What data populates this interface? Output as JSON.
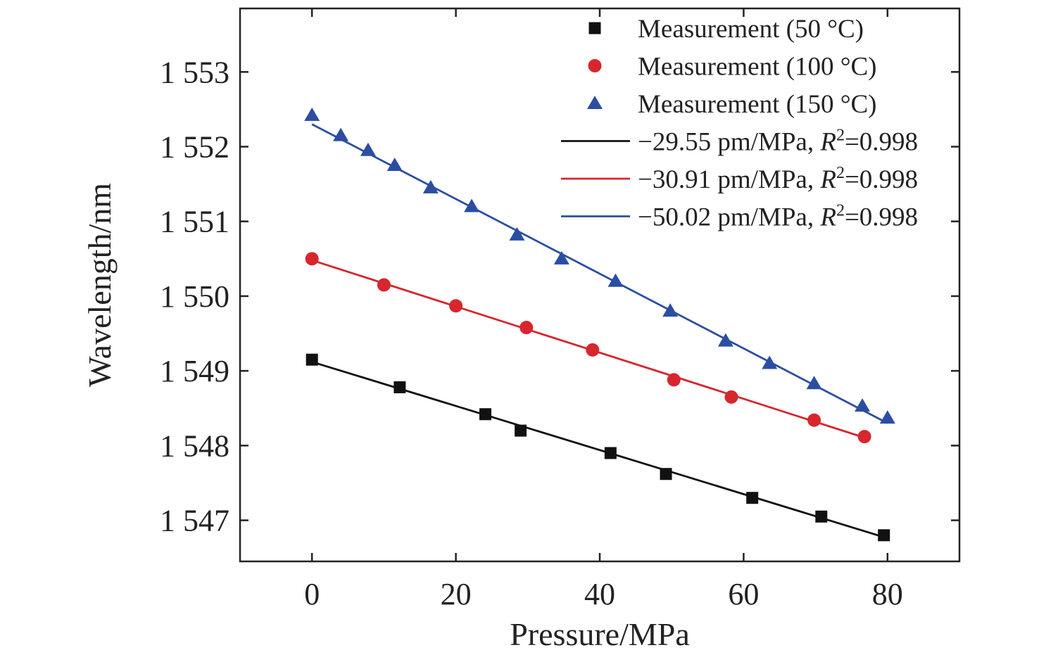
{
  "chart_data": {
    "type": "scatter",
    "xlabel": "Pressure/MPa",
    "ylabel": "Wavelength/nm",
    "xlim": [
      -10,
      90
    ],
    "ylim": [
      1546.45,
      1553.85
    ],
    "x_ticks": [
      0,
      20,
      40,
      60,
      80
    ],
    "x_tick_labels": [
      "0",
      "20",
      "40",
      "60",
      "80"
    ],
    "y_ticks": [
      1547,
      1548,
      1549,
      1550,
      1551,
      1552,
      1553
    ],
    "y_tick_labels": [
      "1 547",
      "1 548",
      "1 549",
      "1 550",
      "1 551",
      "1 552",
      "1 553"
    ],
    "grid": false,
    "legend_position": "top-right",
    "series": [
      {
        "name": "Measurement (50 °C)",
        "kind": "scatter",
        "marker": "square",
        "color": "#111111",
        "x": [
          0,
          12.2,
          24.1,
          29,
          41.5,
          49.2,
          61.2,
          70.8,
          79.5
        ],
        "y": [
          1549.15,
          1548.78,
          1548.42,
          1548.2,
          1547.9,
          1547.62,
          1547.3,
          1547.05,
          1546.8
        ]
      },
      {
        "name": "Measurement (100 °C)",
        "kind": "scatter",
        "marker": "circle",
        "color": "#d7262e",
        "x": [
          0,
          10,
          20,
          29.8,
          39,
          50.3,
          58.3,
          69.8,
          76.8
        ],
        "y": [
          1550.5,
          1550.15,
          1549.87,
          1549.58,
          1549.28,
          1548.88,
          1548.65,
          1548.34,
          1548.12
        ]
      },
      {
        "name": "Measurement (150 °C)",
        "kind": "scatter",
        "marker": "triangle",
        "color": "#2b4ea2",
        "x": [
          0,
          4,
          7.8,
          11.5,
          16.5,
          22.2,
          28.5,
          34.7,
          42.2,
          49.8,
          57.5,
          63.6,
          69.8,
          76.5,
          80
        ],
        "y": [
          1552.42,
          1552.15,
          1551.95,
          1551.75,
          1551.45,
          1551.2,
          1550.82,
          1550.5,
          1550.2,
          1549.8,
          1549.4,
          1549.1,
          1548.83,
          1548.53,
          1548.37
        ]
      },
      {
        "name": "−29.55 pm/MPa, R2=0.998",
        "label_prefix": "−29.55 pm/MPa, ",
        "label_r2": "R",
        "label_sup": "2",
        "label_value": "=0.998",
        "kind": "line",
        "color": "#111111",
        "x": [
          0,
          80
        ],
        "y": [
          1549.12,
          1546.76
        ]
      },
      {
        "name": "−30.91 pm/MPa, R2=0.998",
        "label_prefix": "−30.91 pm/MPa, ",
        "label_r2": "R",
        "label_sup": "2",
        "label_value": "=0.998",
        "kind": "line",
        "color": "#d7262e",
        "x": [
          0,
          77
        ],
        "y": [
          1550.48,
          1548.1
        ]
      },
      {
        "name": "−50.02 pm/MPa, R2=0.998",
        "label_prefix": "−50.02 pm/MPa, ",
        "label_r2": "R",
        "label_sup": "2",
        "label_value": "=0.998",
        "kind": "line",
        "color": "#2b4ea2",
        "x": [
          0,
          80
        ],
        "y": [
          1552.3,
          1548.3
        ]
      }
    ]
  }
}
